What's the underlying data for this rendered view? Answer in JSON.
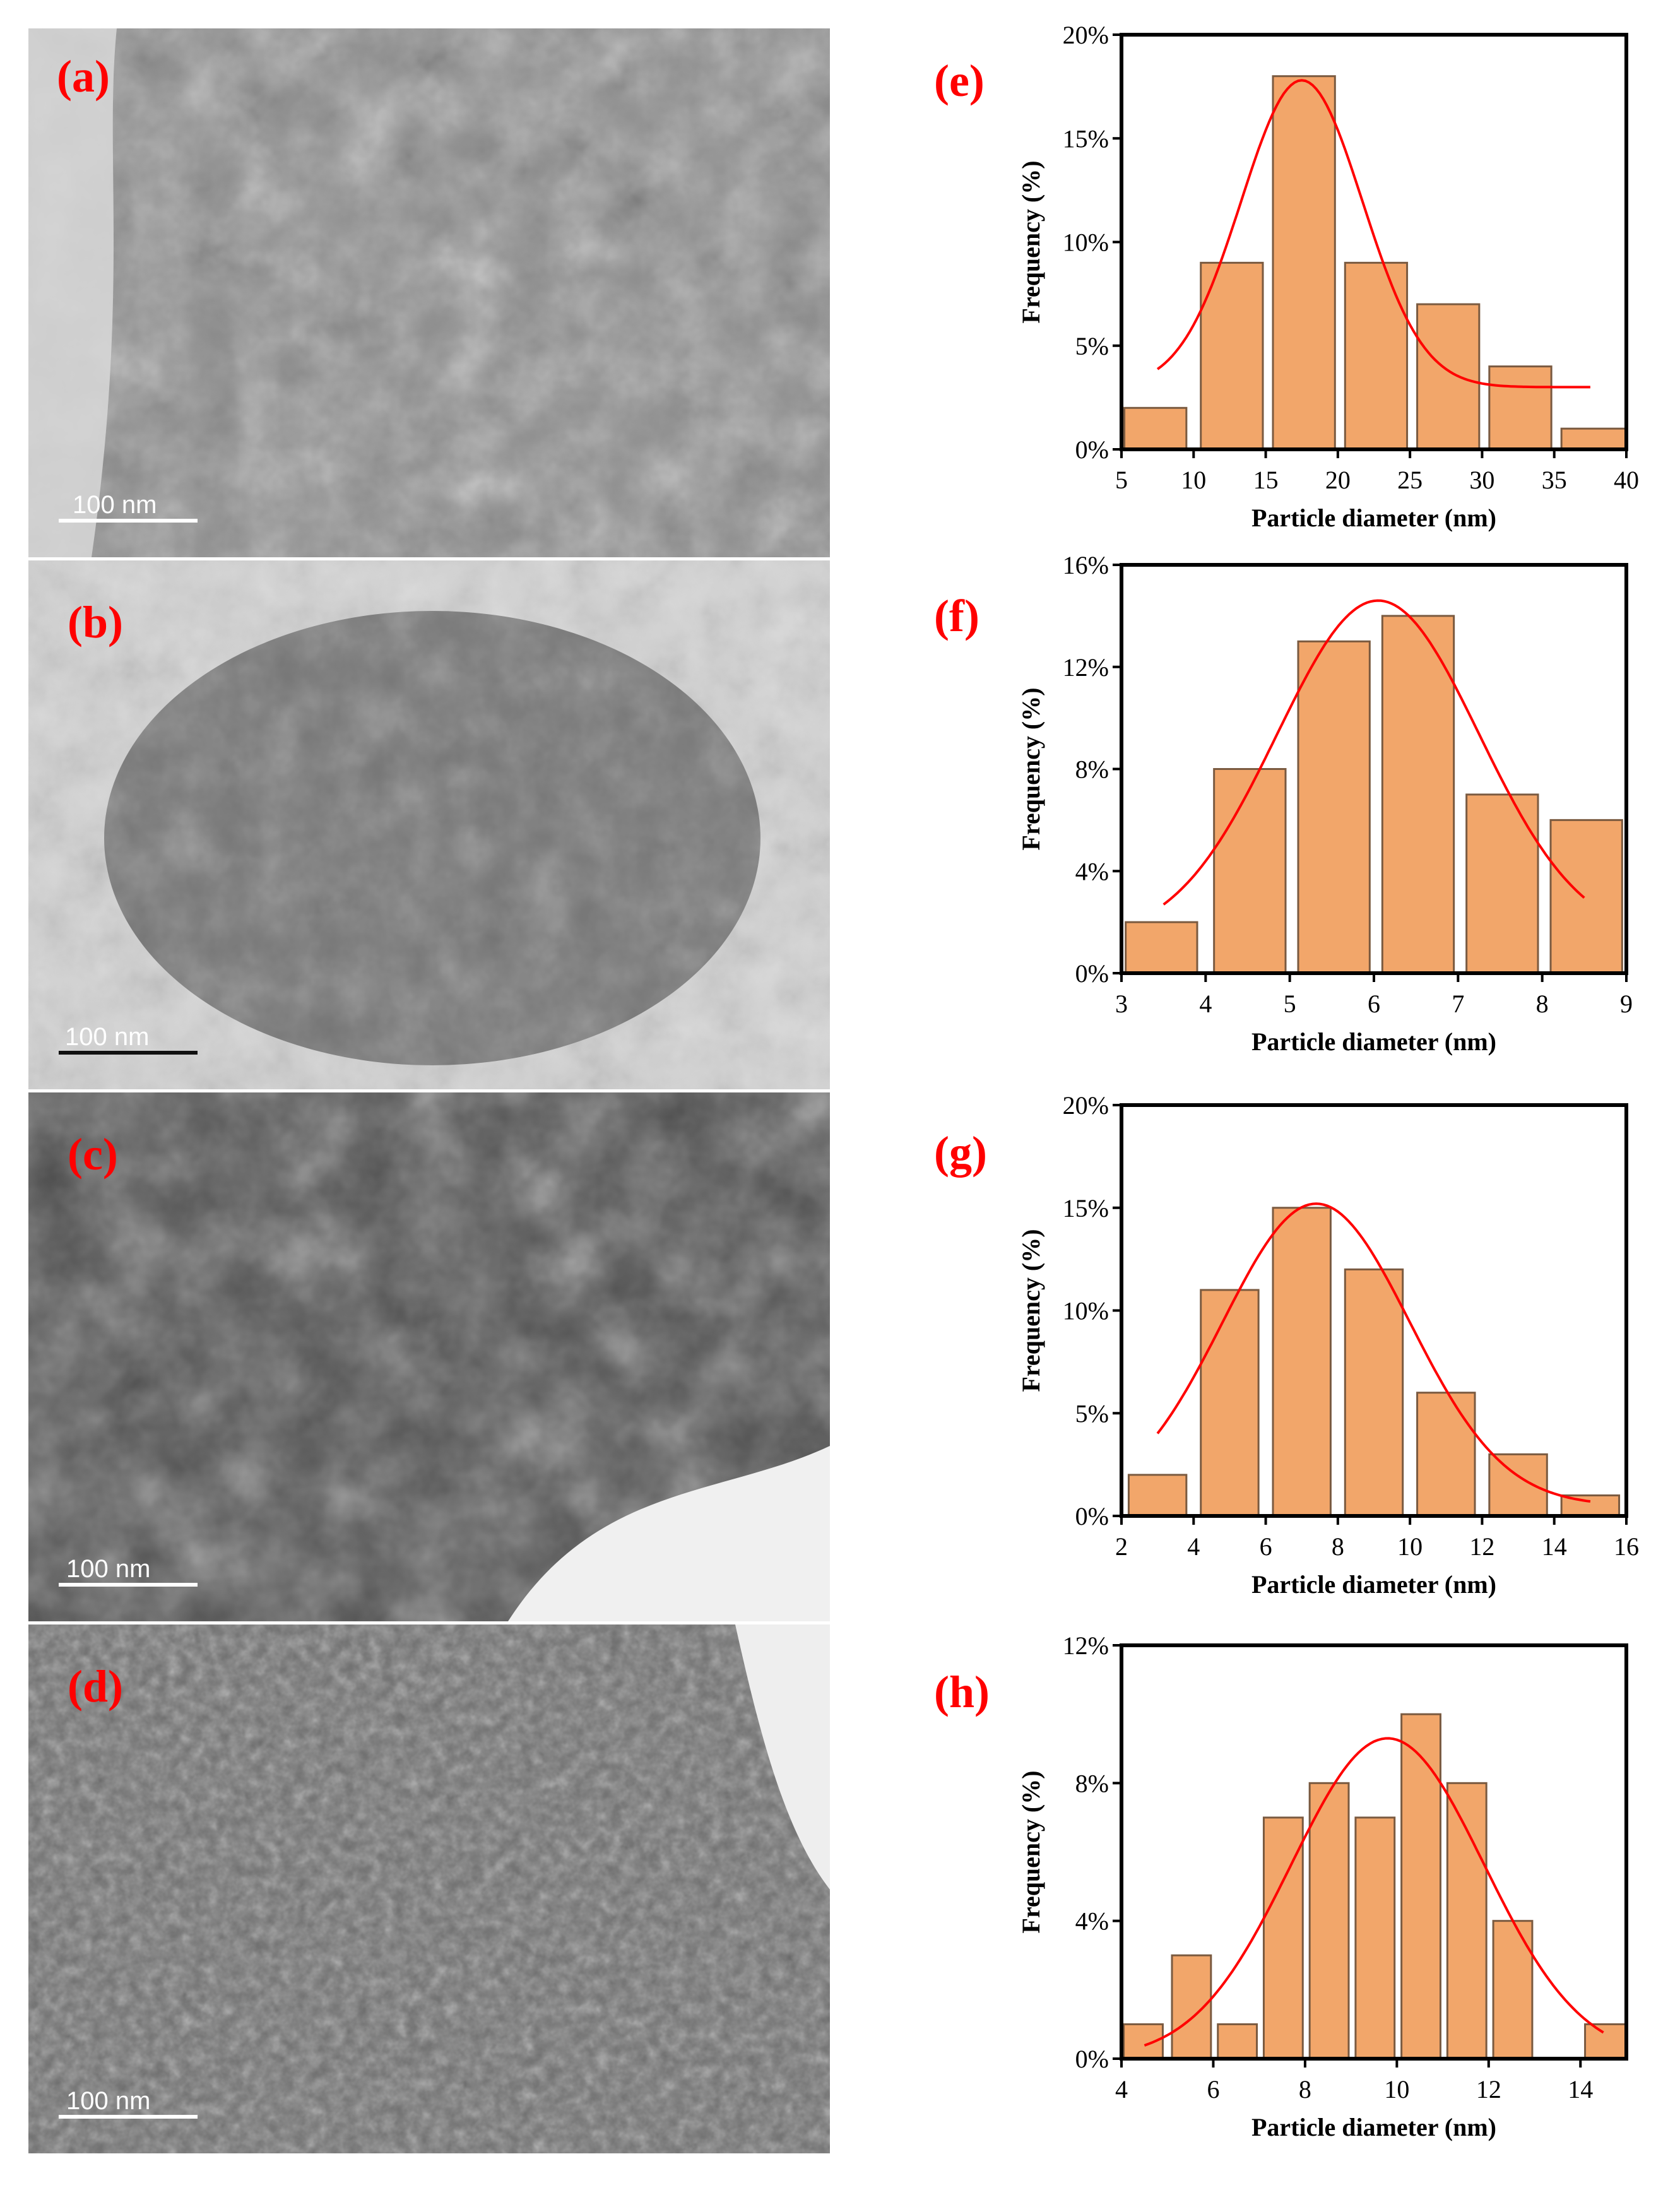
{
  "tem_panels": [
    {
      "label": "(a)",
      "scale_bar": "100 nm",
      "tone": "#6a6a6a"
    },
    {
      "label": "(b)",
      "scale_bar": "100 nm",
      "tone": "#8a8a8a"
    },
    {
      "label": "(c)",
      "scale_bar": "100 nm",
      "tone": "#5d5d5d"
    },
    {
      "label": "(d)",
      "scale_bar": "100 nm",
      "tone": "#7a7a7a"
    }
  ],
  "colors": {
    "bar_fill": "#f2a66a",
    "bar_stroke": "#7a5a40",
    "fit_line": "#ff0000",
    "panel_label": "#ff0000"
  },
  "chart_data": [
    {
      "panel": "(e)",
      "type": "bar",
      "xlabel": "Particle diameter (nm)",
      "ylabel": "Frequency (%)",
      "xlim": [
        5,
        40
      ],
      "ylim": [
        0,
        20
      ],
      "xticks": [
        5,
        10,
        15,
        20,
        25,
        30,
        35,
        40
      ],
      "yticks": [
        0,
        5,
        10,
        15,
        20
      ],
      "ytick_labels": [
        "0%",
        "5%",
        "10%",
        "15%",
        "20%"
      ],
      "bins": [
        [
          5.2,
          9.5
        ],
        [
          10.5,
          14.8
        ],
        [
          15.5,
          19.8
        ],
        [
          20.5,
          24.8
        ],
        [
          25.5,
          29.8
        ],
        [
          30.5,
          34.8
        ],
        [
          35.5,
          40
        ]
      ],
      "values": [
        2,
        9,
        18,
        9,
        7,
        4,
        1
      ],
      "fit": {
        "type": "gaussian",
        "mean": 17.5,
        "sigma": 4.2,
        "amplitude": 14.8,
        "baseline": 3,
        "x_range": [
          7.5,
          37.5
        ]
      }
    },
    {
      "panel": "(f)",
      "type": "bar",
      "xlabel": "Particle diameter (nm)",
      "ylabel": "Frequency (%)",
      "xlim": [
        3,
        9
      ],
      "ylim": [
        0,
        16
      ],
      "xticks": [
        3,
        4,
        5,
        6,
        7,
        8,
        9
      ],
      "yticks": [
        0,
        4,
        8,
        12,
        16
      ],
      "ytick_labels": [
        "0%",
        "4%",
        "8%",
        "12%",
        "16%"
      ],
      "bins": [
        [
          3.05,
          3.9
        ],
        [
          4.1,
          4.95
        ],
        [
          5.1,
          5.95
        ],
        [
          6.1,
          6.95
        ],
        [
          7.1,
          7.95
        ],
        [
          8.1,
          8.95
        ]
      ],
      "values": [
        2,
        8,
        13,
        14,
        7,
        6
      ],
      "fit": {
        "type": "gaussian",
        "mean": 6.05,
        "sigma": 1.2,
        "amplitude": 13.3,
        "baseline": 1.3,
        "x_range": [
          3.5,
          8.5
        ]
      }
    },
    {
      "panel": "(g)",
      "type": "bar",
      "xlabel": "Particle diameter (nm)",
      "ylabel": "Frequency (%)",
      "xlim": [
        2,
        16
      ],
      "ylim": [
        0,
        20
      ],
      "xticks": [
        2,
        4,
        6,
        8,
        10,
        12,
        14,
        16
      ],
      "yticks": [
        0,
        5,
        10,
        15,
        20
      ],
      "ytick_labels": [
        "0%",
        "5%",
        "10%",
        "15%",
        "20%"
      ],
      "bins": [
        [
          2.2,
          3.8
        ],
        [
          4.2,
          5.8
        ],
        [
          6.2,
          7.8
        ],
        [
          8.2,
          9.8
        ],
        [
          10.2,
          11.8
        ],
        [
          12.2,
          13.8
        ],
        [
          14.2,
          15.8
        ]
      ],
      "values": [
        2,
        11,
        15,
        12,
        6,
        3,
        1
      ],
      "fit": {
        "type": "gaussian",
        "mean": 7.4,
        "sigma": 2.6,
        "amplitude": 14.7,
        "baseline": 0.5,
        "x_range": [
          3,
          15
        ]
      }
    },
    {
      "panel": "(h)",
      "type": "bar",
      "xlabel": "Particle diameter (nm)",
      "ylabel": "Frequency (%)",
      "xlim": [
        4,
        15
      ],
      "ylim": [
        0,
        12
      ],
      "xticks": [
        4,
        6,
        8,
        10,
        12,
        14
      ],
      "yticks": [
        0,
        4,
        8,
        12
      ],
      "ytick_labels": [
        "0%",
        "4%",
        "8%",
        "12%"
      ],
      "bins": [
        [
          4.05,
          4.9
        ],
        [
          5.1,
          5.95
        ],
        [
          6.1,
          6.95
        ],
        [
          7.1,
          7.95
        ],
        [
          8.1,
          8.95
        ],
        [
          9.1,
          9.95
        ],
        [
          10.1,
          10.95
        ],
        [
          11.1,
          11.95
        ],
        [
          12.1,
          12.95
        ],
        [
          14.1,
          15
        ]
      ],
      "values": [
        1,
        3,
        1,
        7,
        8,
        7,
        10,
        8,
        4,
        1
      ],
      "fit": {
        "type": "gaussian",
        "mean": 9.8,
        "sigma": 2.1,
        "amplitude": 9.3,
        "baseline": 0,
        "x_range": [
          4.5,
          14.5
        ]
      }
    }
  ]
}
